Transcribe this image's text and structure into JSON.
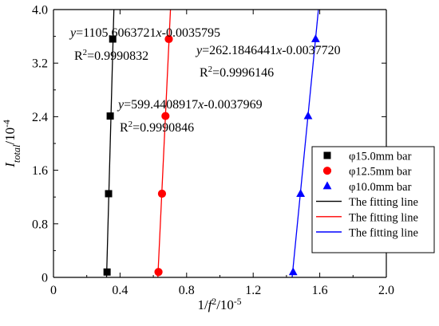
{
  "chart_data": {
    "type": "scatter",
    "xlabel": "1/f²/10⁻⁵",
    "ylabel": "I_total/10⁻⁴",
    "xlim": [
      0,
      2.0
    ],
    "ylim": [
      0,
      4.0
    ],
    "x_ticks": [
      "0",
      "0.4",
      "0.8",
      "1.2",
      "1.6",
      "2.0"
    ],
    "y_ticks": [
      "0",
      "0.8",
      "1.6",
      "2.4",
      "3.2",
      "4.0"
    ],
    "x_tick_values": [
      0,
      0.4,
      0.8,
      1.2,
      1.6,
      2.0
    ],
    "y_tick_values": [
      0,
      0.8,
      1.6,
      2.4,
      3.2,
      4.0
    ],
    "legend_position": "bottom-right",
    "grid": false,
    "series": [
      {
        "name": "φ15.0mm bar",
        "marker": "square",
        "color": "#000000",
        "points": [
          [
            0.322,
            0.08
          ],
          [
            0.331,
            1.25
          ],
          [
            0.341,
            2.41
          ],
          [
            0.356,
            3.56
          ]
        ],
        "fit_name": "The fitting line",
        "fit": {
          "x_start": 0.319,
          "x_end": 0.363
        },
        "equation": "y=1105.6063721x-0.0035795",
        "r2": "R²=0.9990832"
      },
      {
        "name": "φ12.5mm bar",
        "marker": "circle",
        "color": "#ff0000",
        "points": [
          [
            0.631,
            0.08
          ],
          [
            0.652,
            1.25
          ],
          [
            0.673,
            2.41
          ],
          [
            0.693,
            3.56
          ]
        ],
        "fit_name": "The fitting line",
        "fit": {
          "x_start": 0.627,
          "x_end": 0.703
        },
        "equation": "y=599.4408917x-0.0037969",
        "r2": "R²=0.9990846"
      },
      {
        "name": "φ10.0mm bar",
        "marker": "triangle",
        "color": "#0000ff",
        "points": [
          [
            1.44,
            0.08
          ],
          [
            1.485,
            1.25
          ],
          [
            1.53,
            2.41
          ],
          [
            1.575,
            3.56
          ]
        ],
        "fit_name": "The fitting line",
        "fit": {
          "x_start": 1.434,
          "x_end": 1.592
        },
        "equation": "y=262.1846441x-0.0037720",
        "r2": "R²=0.9996146"
      }
    ]
  }
}
